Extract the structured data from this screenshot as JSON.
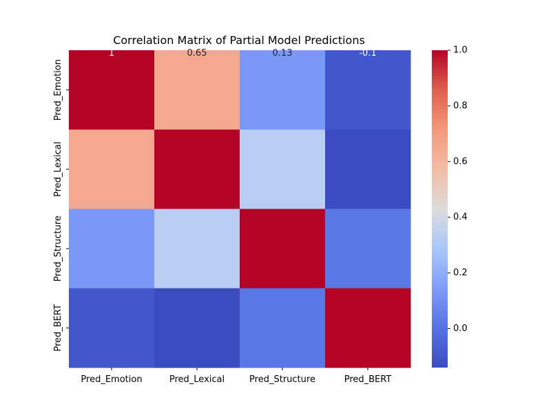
{
  "chart_data": {
    "type": "heatmap",
    "title": "Correlation Matrix of Partial Model Predictions",
    "xlabel": "",
    "ylabel": "",
    "x_labels": [
      "Pred_Emotion",
      "Pred_Lexical",
      "Pred_Structure",
      "Pred_BERT"
    ],
    "y_labels": [
      "Pred_Emotion",
      "Pred_Lexical",
      "Pred_Structure",
      "Pred_BERT"
    ],
    "values": [
      [
        1.0,
        0.65,
        0.13,
        -0.1
      ],
      [
        0.65,
        1.0,
        0.33,
        -0.14
      ],
      [
        0.13,
        0.33,
        1.0,
        0.02
      ],
      [
        -0.1,
        -0.14,
        0.02,
        1.0
      ]
    ],
    "annotations": [
      [
        "1",
        "0.65",
        "0.13",
        "-0.1"
      ],
      [
        "",
        "",
        "",
        ""
      ],
      [
        "",
        "",
        "",
        ""
      ],
      [
        "",
        "",
        "",
        ""
      ]
    ],
    "colormap": "coolwarm",
    "vmin": -0.14,
    "vmax": 1.0,
    "colorbar_ticks": [
      0.0,
      0.2,
      0.4,
      0.6,
      0.8,
      1.0
    ],
    "colorbar_tick_labels": [
      "0.0",
      "0.2",
      "0.4",
      "0.6",
      "0.8",
      "1.0"
    ],
    "grid": false,
    "legend": "colorbar-right"
  }
}
